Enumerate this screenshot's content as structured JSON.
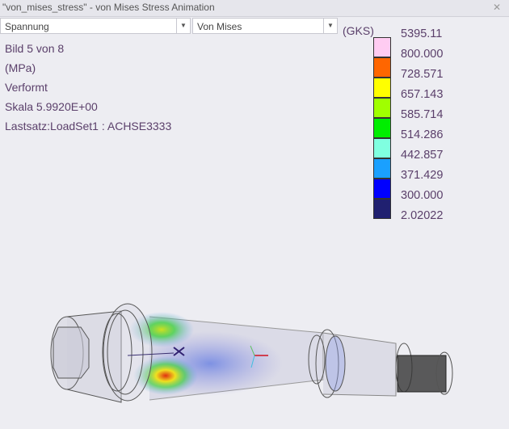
{
  "window": {
    "title": "\"von_mises_stress\" - von Mises Stress Animation",
    "close_icon": "close-icon"
  },
  "toolbar": {
    "quantity": "Spannung",
    "component": "Von Mises"
  },
  "info": {
    "frame": "Bild 5 von 8",
    "unit": "(MPa)",
    "mode": "Verformt",
    "scale": "Skala  5.9920E+00",
    "loadset": "Lastsatz:LoadSet1 :  ACHSE3333"
  },
  "legend": {
    "csys": "(GKS)",
    "labels": [
      "5395.11",
      "800.000",
      "728.571",
      "657.143",
      "585.714",
      "514.286",
      "442.857",
      "371.429",
      "300.000",
      "2.02022"
    ],
    "colors": [
      "#ffccf2",
      "#ff6600",
      "#ffff00",
      "#a0ff00",
      "#00ee00",
      "#80ffe0",
      "#1aa0ff",
      "#0000ff",
      "#202070"
    ]
  }
}
